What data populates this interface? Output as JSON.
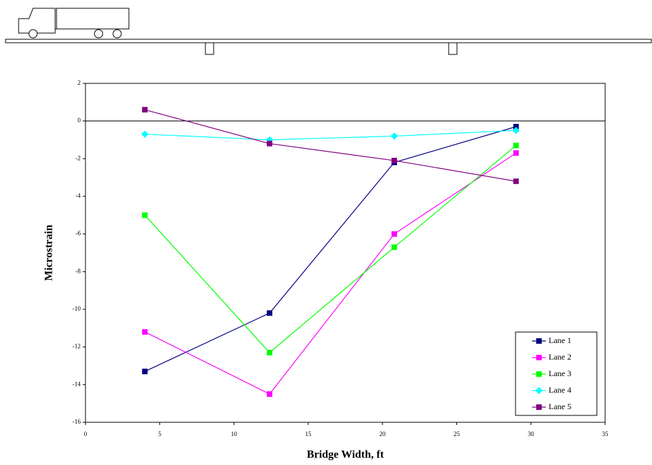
{
  "chart_data": {
    "type": "line",
    "x_label": "Bridge Width, ft",
    "y_label": "Microstrain",
    "x": [
      4,
      12.4,
      20.8,
      29
    ],
    "series": [
      {
        "name": "Lane 1",
        "color": "#000080",
        "marker": "square",
        "values": [
          -13.3,
          -10.2,
          -2.2,
          -0.3
        ]
      },
      {
        "name": "Lane 2",
        "color": "#ff00ff",
        "marker": "square",
        "values": [
          -11.2,
          -14.5,
          -6.0,
          -1.7
        ]
      },
      {
        "name": "Lane 3",
        "color": "#00ff00",
        "marker": "square",
        "values": [
          -5.0,
          -12.3,
          -6.7,
          -1.3
        ]
      },
      {
        "name": "Lane 4",
        "color": "#00ffff",
        "marker": "diamond",
        "values": [
          -0.7,
          -1.0,
          -0.8,
          -0.5
        ]
      },
      {
        "name": "Lane 5",
        "color": "#800080",
        "marker": "square",
        "values": [
          0.6,
          -1.2,
          -2.1,
          -3.2
        ]
      }
    ],
    "xlim": [
      0,
      35
    ],
    "xticks": [
      0,
      5,
      10,
      15,
      20,
      25,
      30,
      35
    ],
    "ylim": [
      -16,
      2
    ],
    "yticks": [
      2,
      0,
      -2,
      -4,
      -6,
      -8,
      -10,
      -12,
      -14,
      -16
    ],
    "grid": false,
    "legend": "lower right"
  }
}
